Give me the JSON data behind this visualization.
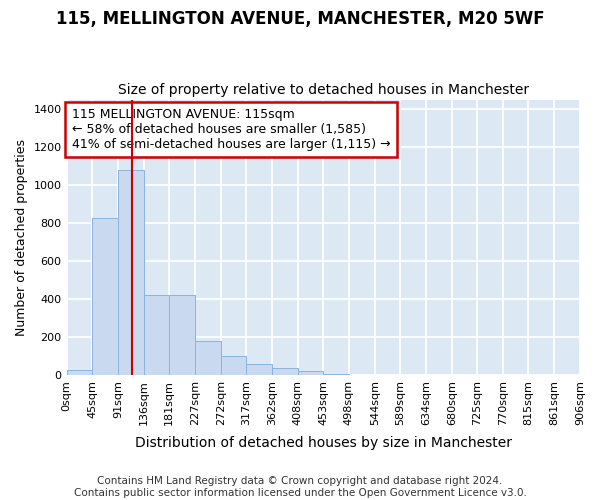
{
  "title": "115, MELLINGTON AVENUE, MANCHESTER, M20 5WF",
  "subtitle": "Size of property relative to detached houses in Manchester",
  "xlabel": "Distribution of detached houses by size in Manchester",
  "ylabel": "Number of detached properties",
  "bar_color": "#c8d9f0",
  "bar_edge_color": "#8ab4de",
  "plot_bg_color": "#dde8f5",
  "fig_bg_color": "#ffffff",
  "grid_color": "#ffffff",
  "vline_x": 115,
  "vline_color": "#cc0000",
  "bin_edges": [
    0,
    45,
    91,
    136,
    181,
    227,
    272,
    317,
    362,
    408,
    453,
    498,
    544,
    589,
    634,
    680,
    725,
    770,
    815,
    861,
    906
  ],
  "bar_heights": [
    25,
    825,
    1080,
    420,
    420,
    180,
    100,
    58,
    35,
    20,
    5,
    0,
    0,
    0,
    0,
    0,
    0,
    0,
    0,
    0
  ],
  "tick_labels": [
    "0sqm",
    "45sqm",
    "91sqm",
    "136sqm",
    "181sqm",
    "227sqm",
    "272sqm",
    "317sqm",
    "362sqm",
    "408sqm",
    "453sqm",
    "498sqm",
    "544sqm",
    "589sqm",
    "634sqm",
    "680sqm",
    "725sqm",
    "770sqm",
    "815sqm",
    "861sqm",
    "906sqm"
  ],
  "ylim": [
    0,
    1450
  ],
  "yticks": [
    0,
    200,
    400,
    600,
    800,
    1000,
    1200,
    1400
  ],
  "annotation_text": "115 MELLINGTON AVENUE: 115sqm\n← 58% of detached houses are smaller (1,585)\n41% of semi-detached houses are larger (1,115) →",
  "annotation_box_color": "#ffffff",
  "annotation_box_edge": "#cc0000",
  "footer_text": "Contains HM Land Registry data © Crown copyright and database right 2024.\nContains public sector information licensed under the Open Government Licence v3.0.",
  "title_fontsize": 12,
  "subtitle_fontsize": 10,
  "xlabel_fontsize": 10,
  "ylabel_fontsize": 9,
  "tick_fontsize": 8,
  "annotation_fontsize": 9,
  "footer_fontsize": 7.5
}
